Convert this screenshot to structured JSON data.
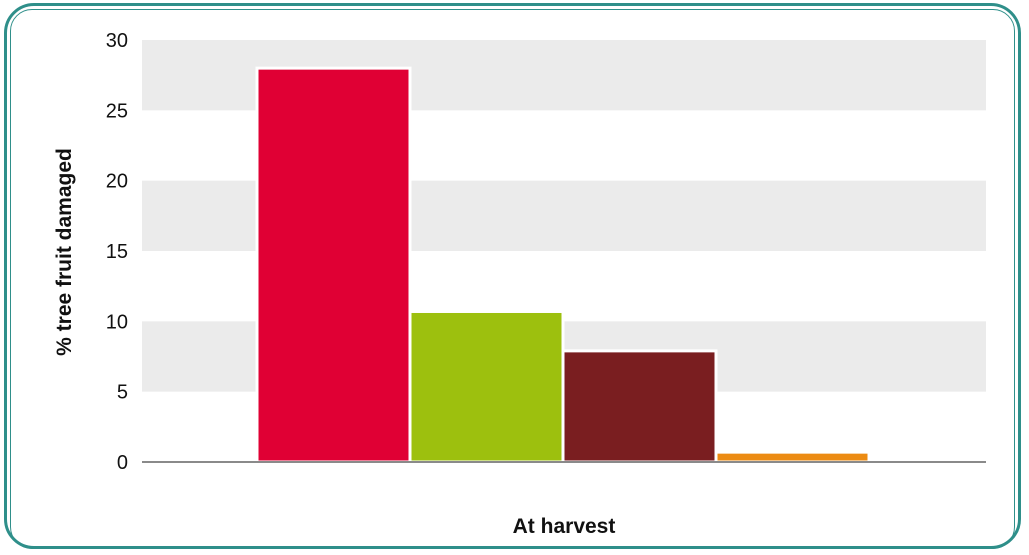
{
  "chart_data": {
    "type": "bar",
    "xlabel": "At harvest",
    "ylabel": "% tree fruit damaged",
    "ylim": [
      0,
      30
    ],
    "yticks": [
      0,
      5,
      10,
      15,
      20,
      25,
      30
    ],
    "grid": "alternating horizontal bands",
    "values": [
      28,
      10.7,
      7.9,
      0.7
    ],
    "colors": [
      "#e00034",
      "#9dc00e",
      "#7a1e20",
      "#ec8b12"
    ]
  },
  "style": {
    "frame_color": "#2f8f8a",
    "band_color": "#ebebeb",
    "axis_color": "#8a8a8a"
  }
}
